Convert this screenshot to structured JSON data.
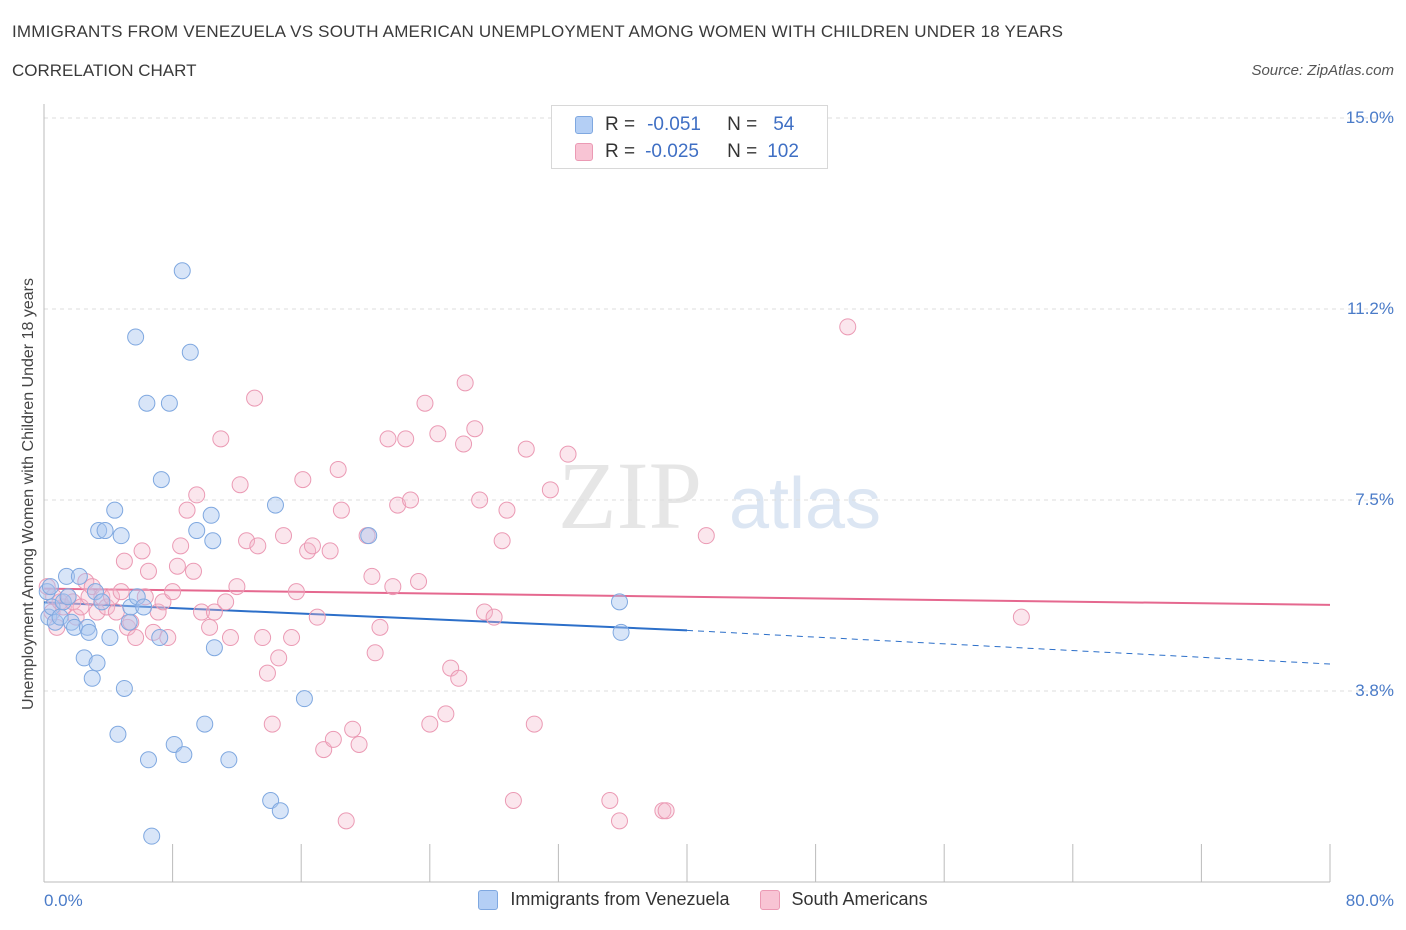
{
  "title": "IMMIGRANTS FROM VENEZUELA VS SOUTH AMERICAN UNEMPLOYMENT AMONG WOMEN WITH CHILDREN UNDER 18 YEARS",
  "subtitle": "CORRELATION CHART",
  "source": "Source: ZipAtlas.com",
  "watermark": {
    "zip": "ZIP",
    "atlas": "atlas"
  },
  "colors": {
    "blue": "#a8c6f0",
    "blue_line": "#2c6fc9",
    "pink": "#f3b7ca",
    "pink_line": "#e5688f",
    "tick_blue": "#4a7bc8"
  },
  "legend": {
    "rows": [
      {
        "r_label": "R =",
        "r_value": "-0.051",
        "n_label": "N =",
        "n_value": "54"
      },
      {
        "r_label": "R =",
        "r_value": "-0.025",
        "n_label": "N =",
        "n_value": "102"
      }
    ]
  },
  "chart_data": {
    "type": "scatter",
    "ylabel": "Unemployment Among Women with Children Under 18 years",
    "xlim": [
      0,
      80
    ],
    "ylim": [
      0,
      15
    ],
    "yticks": [
      {
        "value": 15.0,
        "label": "15.0%"
      },
      {
        "value": 11.25,
        "label": "11.2%"
      },
      {
        "value": 7.5,
        "label": "7.5%"
      },
      {
        "value": 3.75,
        "label": "3.8%"
      }
    ],
    "xtick_labels": {
      "min": "0.0%",
      "max": "80.0%"
    },
    "series": [
      {
        "name": "Immigrants from Venezuela",
        "trend": {
          "x0": 0,
          "y0": 5.49,
          "x1": 40,
          "y1": 4.94,
          "dash_x1": 80,
          "dash_y1": 4.28
        },
        "points": [
          [
            0.2,
            5.7
          ],
          [
            0.3,
            5.2
          ],
          [
            0.4,
            5.8
          ],
          [
            0.5,
            5.4
          ],
          [
            0.7,
            5.1
          ],
          [
            1.0,
            5.2
          ],
          [
            1.2,
            5.5
          ],
          [
            1.4,
            6.0
          ],
          [
            1.5,
            5.6
          ],
          [
            1.7,
            5.1
          ],
          [
            1.9,
            5.0
          ],
          [
            2.2,
            6.0
          ],
          [
            2.5,
            4.4
          ],
          [
            2.7,
            5.0
          ],
          [
            2.8,
            4.9
          ],
          [
            3.0,
            4.0
          ],
          [
            3.2,
            5.7
          ],
          [
            3.3,
            4.3
          ],
          [
            3.4,
            6.9
          ],
          [
            3.6,
            5.5
          ],
          [
            3.8,
            6.9
          ],
          [
            4.1,
            4.8
          ],
          [
            4.4,
            7.3
          ],
          [
            4.6,
            2.9
          ],
          [
            4.8,
            6.8
          ],
          [
            5.0,
            3.8
          ],
          [
            5.3,
            5.1
          ],
          [
            5.4,
            5.4
          ],
          [
            5.7,
            10.7
          ],
          [
            5.8,
            5.6
          ],
          [
            6.2,
            5.4
          ],
          [
            6.4,
            9.4
          ],
          [
            6.5,
            2.4
          ],
          [
            6.7,
            0.9
          ],
          [
            7.2,
            4.8
          ],
          [
            7.3,
            7.9
          ],
          [
            7.8,
            9.4
          ],
          [
            8.1,
            2.7
          ],
          [
            8.6,
            12.0
          ],
          [
            8.7,
            2.5
          ],
          [
            9.1,
            10.4
          ],
          [
            9.5,
            6.9
          ],
          [
            10.0,
            3.1
          ],
          [
            10.4,
            7.2
          ],
          [
            10.5,
            6.7
          ],
          [
            10.6,
            4.6
          ],
          [
            11.5,
            2.4
          ],
          [
            14.1,
            1.6
          ],
          [
            14.4,
            7.4
          ],
          [
            14.7,
            1.4
          ],
          [
            16.2,
            3.6
          ],
          [
            20.2,
            6.8
          ],
          [
            35.8,
            5.5
          ],
          [
            35.9,
            4.9
          ]
        ]
      },
      {
        "name": "South Americans",
        "trend": {
          "x0": 0,
          "y0": 5.76,
          "x1": 80,
          "y1": 5.44
        },
        "points": [
          [
            0.2,
            5.8
          ],
          [
            0.5,
            5.3
          ],
          [
            0.8,
            5.0
          ],
          [
            1.0,
            5.5
          ],
          [
            1.2,
            5.4
          ],
          [
            1.5,
            5.6
          ],
          [
            1.8,
            5.5
          ],
          [
            2.0,
            5.2
          ],
          [
            2.3,
            5.4
          ],
          [
            2.6,
            5.9
          ],
          [
            2.8,
            5.6
          ],
          [
            3.0,
            5.8
          ],
          [
            3.3,
            5.3
          ],
          [
            3.6,
            5.6
          ],
          [
            3.9,
            5.4
          ],
          [
            4.2,
            5.6
          ],
          [
            4.5,
            5.3
          ],
          [
            4.8,
            5.7
          ],
          [
            5.0,
            6.3
          ],
          [
            5.2,
            5.0
          ],
          [
            5.4,
            5.1
          ],
          [
            5.7,
            4.8
          ],
          [
            6.1,
            6.5
          ],
          [
            6.3,
            5.6
          ],
          [
            6.5,
            6.1
          ],
          [
            6.8,
            4.9
          ],
          [
            7.1,
            5.3
          ],
          [
            7.4,
            5.5
          ],
          [
            7.7,
            4.8
          ],
          [
            8.0,
            5.7
          ],
          [
            8.3,
            6.2
          ],
          [
            8.5,
            6.6
          ],
          [
            8.9,
            7.3
          ],
          [
            9.3,
            6.1
          ],
          [
            9.5,
            7.6
          ],
          [
            9.8,
            5.3
          ],
          [
            10.3,
            5.0
          ],
          [
            10.6,
            5.3
          ],
          [
            11.0,
            8.7
          ],
          [
            11.3,
            5.5
          ],
          [
            11.6,
            4.8
          ],
          [
            12.0,
            5.8
          ],
          [
            12.2,
            7.8
          ],
          [
            12.6,
            6.7
          ],
          [
            13.1,
            9.5
          ],
          [
            13.3,
            6.6
          ],
          [
            13.6,
            4.8
          ],
          [
            13.9,
            4.1
          ],
          [
            14.2,
            3.1
          ],
          [
            14.6,
            4.4
          ],
          [
            14.9,
            6.8
          ],
          [
            15.4,
            4.8
          ],
          [
            15.7,
            5.7
          ],
          [
            16.1,
            7.9
          ],
          [
            16.4,
            6.5
          ],
          [
            16.7,
            6.6
          ],
          [
            17.0,
            5.2
          ],
          [
            17.4,
            2.6
          ],
          [
            17.8,
            6.5
          ],
          [
            18.0,
            2.8
          ],
          [
            18.3,
            8.1
          ],
          [
            18.5,
            7.3
          ],
          [
            18.8,
            1.2
          ],
          [
            19.2,
            3.0
          ],
          [
            19.6,
            2.7
          ],
          [
            20.1,
            6.8
          ],
          [
            20.4,
            6.0
          ],
          [
            20.6,
            4.5
          ],
          [
            20.9,
            5.0
          ],
          [
            21.4,
            8.7
          ],
          [
            21.7,
            5.8
          ],
          [
            22.0,
            7.4
          ],
          [
            22.5,
            8.7
          ],
          [
            22.8,
            7.5
          ],
          [
            23.3,
            5.9
          ],
          [
            23.7,
            9.4
          ],
          [
            24.0,
            3.1
          ],
          [
            24.5,
            8.8
          ],
          [
            25.0,
            3.3
          ],
          [
            25.3,
            4.2
          ],
          [
            25.8,
            4.0
          ],
          [
            26.1,
            8.6
          ],
          [
            26.2,
            9.8
          ],
          [
            26.8,
            8.9
          ],
          [
            27.1,
            7.5
          ],
          [
            27.4,
            5.3
          ],
          [
            28.0,
            5.2
          ],
          [
            28.5,
            6.7
          ],
          [
            28.8,
            7.3
          ],
          [
            29.2,
            1.6
          ],
          [
            30.0,
            8.5
          ],
          [
            30.5,
            3.1
          ],
          [
            31.5,
            7.7
          ],
          [
            32.6,
            8.4
          ],
          [
            35.2,
            1.6
          ],
          [
            35.8,
            1.2
          ],
          [
            38.5,
            1.4
          ],
          [
            38.7,
            1.4
          ],
          [
            41.2,
            6.8
          ],
          [
            50.0,
            10.9
          ],
          [
            60.8,
            5.2
          ],
          [
            0.6,
            5.6
          ]
        ]
      }
    ]
  }
}
